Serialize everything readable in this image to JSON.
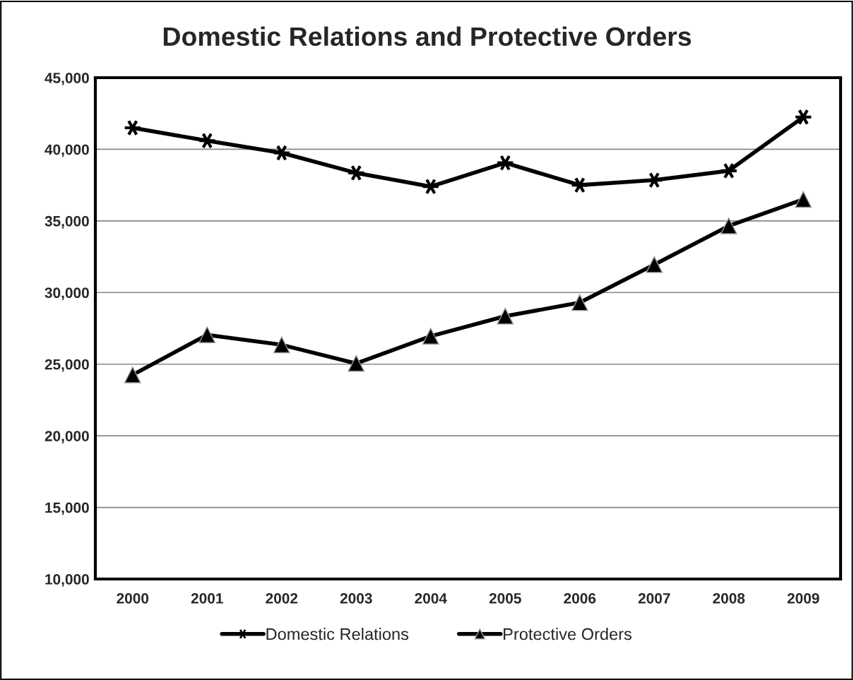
{
  "chart_data": {
    "type": "line",
    "title": "Domestic Relations and Protective Orders",
    "categories": [
      "2000",
      "2001",
      "2002",
      "2003",
      "2004",
      "2005",
      "2006",
      "2007",
      "2008",
      "2009"
    ],
    "series": [
      {
        "name": "Domestic Relations",
        "color": "#000000",
        "marker": "cross",
        "values": [
          41500,
          40600,
          39750,
          38350,
          37400,
          39050,
          37500,
          37850,
          38500,
          42250
        ]
      },
      {
        "name": "Protective Orders",
        "color": "#000000",
        "marker": "triangle",
        "values": [
          24250,
          27050,
          26350,
          25050,
          26950,
          28350,
          29300,
          31950,
          34650,
          36500
        ]
      }
    ],
    "ylim": [
      10000,
      45000
    ],
    "yticks": [
      {
        "value": 10000,
        "label": "10,000"
      },
      {
        "value": 15000,
        "label": "15,000"
      },
      {
        "value": 20000,
        "label": "20,000"
      },
      {
        "value": 25000,
        "label": "25,000"
      },
      {
        "value": 30000,
        "label": "30,000"
      },
      {
        "value": 35000,
        "label": "35,000"
      },
      {
        "value": 40000,
        "label": "40,000"
      },
      {
        "value": 45000,
        "label": "45,000"
      }
    ],
    "grid": "y",
    "legend": "bottom",
    "line_style": "solid"
  }
}
